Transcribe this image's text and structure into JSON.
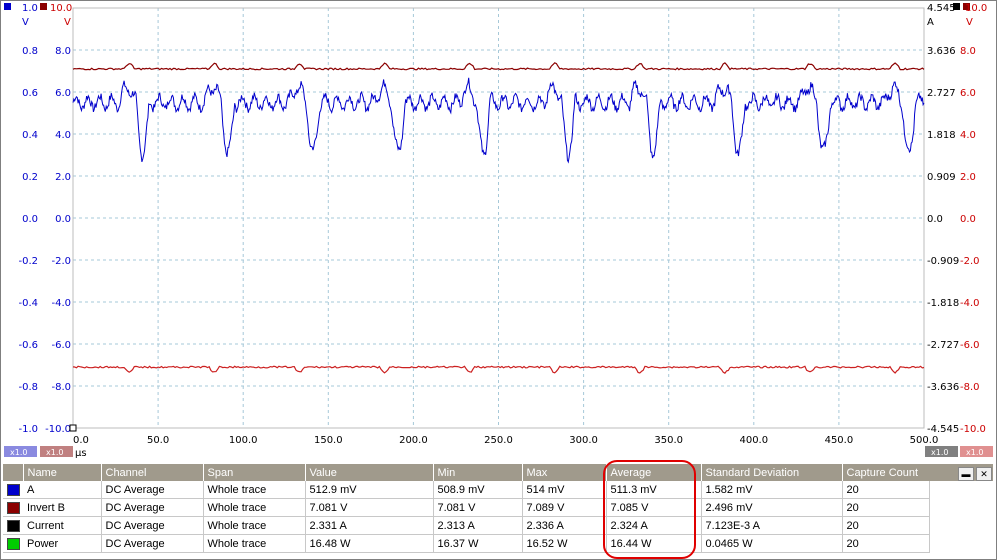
{
  "colors": {
    "channel_a": "#0000cc",
    "channel_b": "#8b0000",
    "current": "#000000",
    "power": "#00cc00",
    "grid": "#a6c8d8",
    "axis_b": "#cc0000",
    "highlight": "#e00000"
  },
  "axes": {
    "left_a_unit": "V",
    "left_a_scale": "1.0",
    "left_b_unit": "V",
    "left_b_scale": "10.0",
    "right_current_unit": "A",
    "right_current_scale": "4.545",
    "right_b_unit": "V",
    "right_b_scale": "10.0",
    "x_unit": "µs",
    "zoom_a": "x1.0",
    "zoom_b": "x1.0",
    "zoom_right_current": "x1.0",
    "zoom_right_b": "x1.0",
    "left_a_ticks": [
      "0.8",
      "0.6",
      "0.4",
      "0.2",
      "0.0",
      "-0.2",
      "-0.4",
      "-0.6",
      "-0.8",
      "-1.0"
    ],
    "left_b_ticks": [
      "8.0",
      "6.0",
      "4.0",
      "2.0",
      "0.0",
      "-2.0",
      "-4.0",
      "-6.0",
      "-8.0",
      "-10.0"
    ],
    "right_current_ticks": [
      "3.636",
      "2.727",
      "1.818",
      "0.909",
      "0.0",
      "-0.909",
      "-1.818",
      "-2.727",
      "-3.636",
      "-4.545"
    ],
    "right_b_ticks": [
      "8.0",
      "6.0",
      "4.0",
      "2.0",
      "0.0",
      "-2.0",
      "-4.0",
      "-6.0",
      "-8.0",
      "-10.0"
    ],
    "x_ticks": [
      "0.0",
      "50.0",
      "100.0",
      "150.0",
      "200.0",
      "250.0",
      "300.0",
      "350.0",
      "400.0",
      "450.0",
      "500.0"
    ]
  },
  "chart_data": {
    "type": "line",
    "x_range_us": [
      0,
      500
    ],
    "y_range_a_volts": [
      -1.0,
      1.0
    ],
    "y_range_b_volts": [
      -10.0,
      10.0
    ],
    "grid": true,
    "series": [
      {
        "name": "A",
        "baseline": 0.55,
        "dip_min": 0.31,
        "dip_period_us": 50,
        "first_dip_us": 37
      },
      {
        "name": "Invert B",
        "baseline": 7.1,
        "ripple": 0.25,
        "ripple_period_us": 50
      },
      {
        "name": "Invert B",
        "baseline": -7.1,
        "ripple": 0.25,
        "ripple_period_us": 50
      }
    ]
  },
  "table": {
    "headers": [
      "Name",
      "Channel",
      "Span",
      "Value",
      "Min",
      "Max",
      "Average",
      "Standard Deviation",
      "Capture Count"
    ],
    "rows": [
      {
        "color": "#0000cc",
        "name": "A",
        "channel": "DC Average",
        "span": "Whole trace",
        "value": "512.9 mV",
        "min": "508.9 mV",
        "max": "514 mV",
        "average": "511.3 mV",
        "std": "1.582 mV",
        "count": "20"
      },
      {
        "color": "#8b0000",
        "name": "Invert B",
        "channel": "DC Average",
        "span": "Whole trace",
        "value": "7.081 V",
        "min": "7.081 V",
        "max": "7.089 V",
        "average": "7.085 V",
        "std": "2.496 mV",
        "count": "20"
      },
      {
        "color": "#000000",
        "name": "Current",
        "channel": "DC Average",
        "span": "Whole trace",
        "value": "2.331 A",
        "min": "2.313 A",
        "max": "2.336 A",
        "average": "2.324 A",
        "std": "7.123E-3 A",
        "count": "20"
      },
      {
        "color": "#00cc00",
        "name": "Power",
        "channel": "DC Average",
        "span": "Whole trace",
        "value": "16.48 W",
        "min": "16.37 W",
        "max": "16.52 W",
        "average": "16.44 W",
        "std": "0.0465 W",
        "count": "20"
      }
    ]
  }
}
